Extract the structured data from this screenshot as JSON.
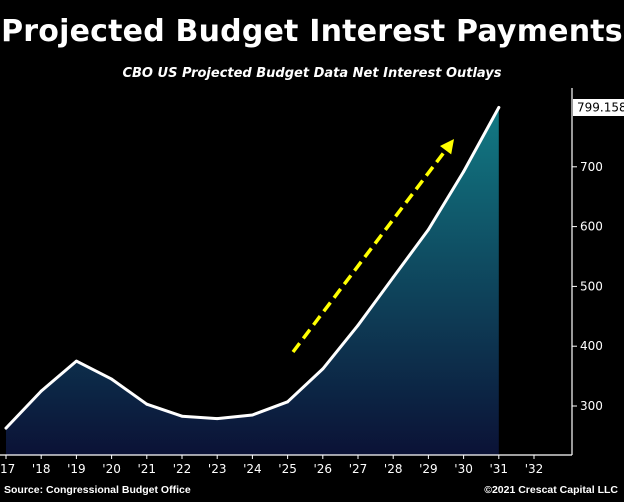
{
  "title": "Projected Budget Interest Payments",
  "subtitle": "CBO US Projected Budget Data Net Interest Outlays",
  "source": "Source: Congressional Budget Office",
  "copyright": "©2021 Crescat Capital LLC",
  "colors": {
    "background": "#000000",
    "line": "#ffffff",
    "fill_top": "#127a84",
    "fill_bottom": "#0b1236",
    "arrow": "#ffff00"
  },
  "chart_data": {
    "type": "area",
    "x": [
      "'17",
      "'18",
      "'19",
      "'20",
      "'21",
      "'22",
      "'23",
      "'24",
      "'25",
      "'26",
      "'27",
      "'28",
      "'29",
      "'30",
      "'31"
    ],
    "values": [
      263,
      325,
      375,
      345,
      303,
      283,
      279,
      285,
      307,
      362,
      435,
      515,
      595,
      692,
      799.158
    ],
    "xticks": [
      "'17",
      "'18",
      "'19",
      "'20",
      "'21",
      "'22",
      "'23",
      "'24",
      "'25",
      "'26",
      "'27",
      "'28",
      "'29",
      "'30",
      "'31",
      "'32"
    ],
    "yticks": [
      300,
      400,
      500,
      600,
      700
    ],
    "ylim": [
      220,
      820
    ],
    "last_value_label": "799.158",
    "annotation": "yellow dashed upward arrow",
    "grid": false
  }
}
